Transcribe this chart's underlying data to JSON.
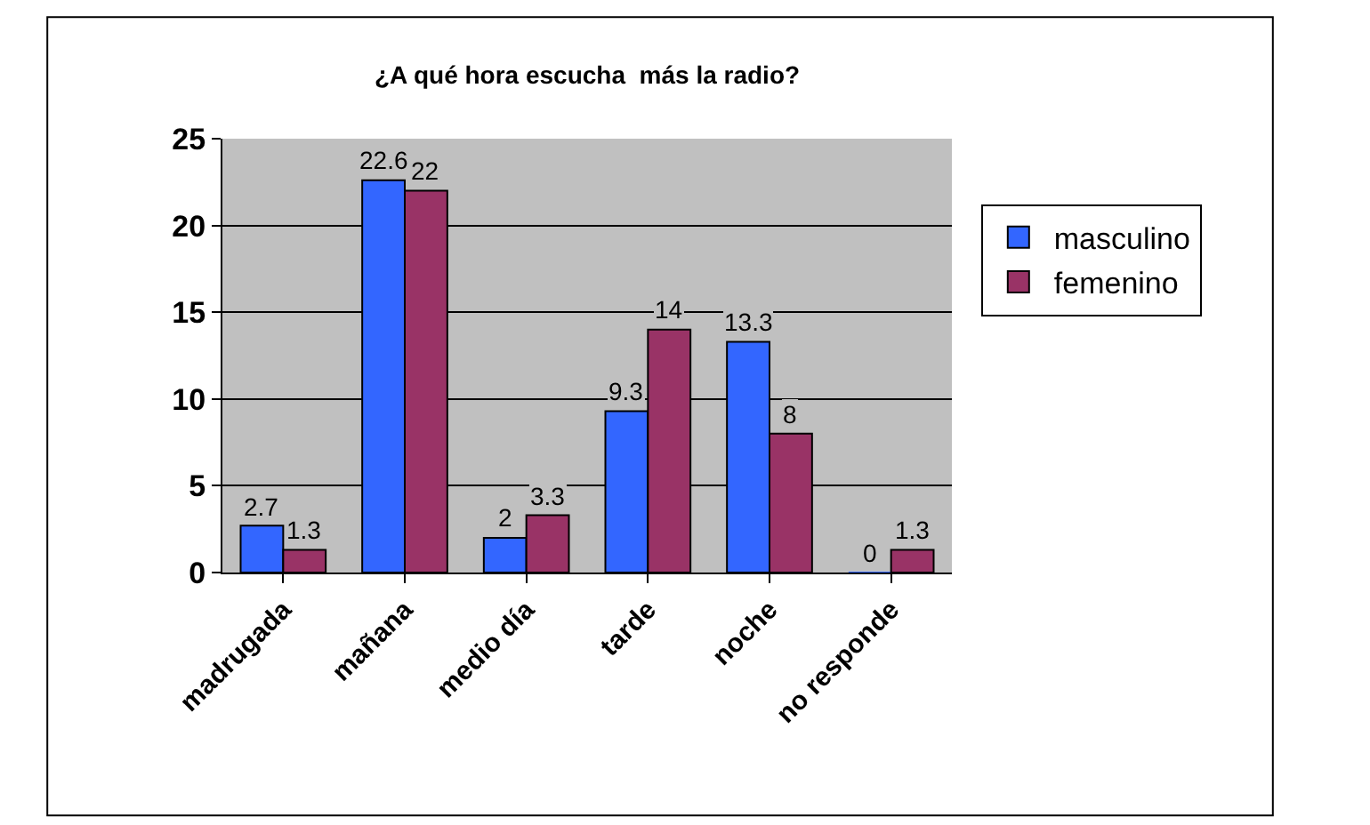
{
  "chart_data": {
    "type": "bar",
    "title": "¿A qué hora escucha  más la radio?",
    "categories": [
      "madrugada",
      "mañana",
      "medio día",
      "tarde",
      "noche",
      "no responde"
    ],
    "series": [
      {
        "name": "masculino",
        "color": "#3366ff",
        "values": [
          2.7,
          22.6,
          2,
          9.3,
          13.3,
          0
        ]
      },
      {
        "name": "femenino",
        "color": "#993366",
        "values": [
          1.3,
          22,
          3.3,
          14,
          8,
          1.3
        ]
      }
    ],
    "ylim": [
      0,
      25
    ],
    "yticks": [
      0,
      5,
      10,
      15,
      20,
      25
    ],
    "grid": "y",
    "legend": "right",
    "data_labels": true
  }
}
